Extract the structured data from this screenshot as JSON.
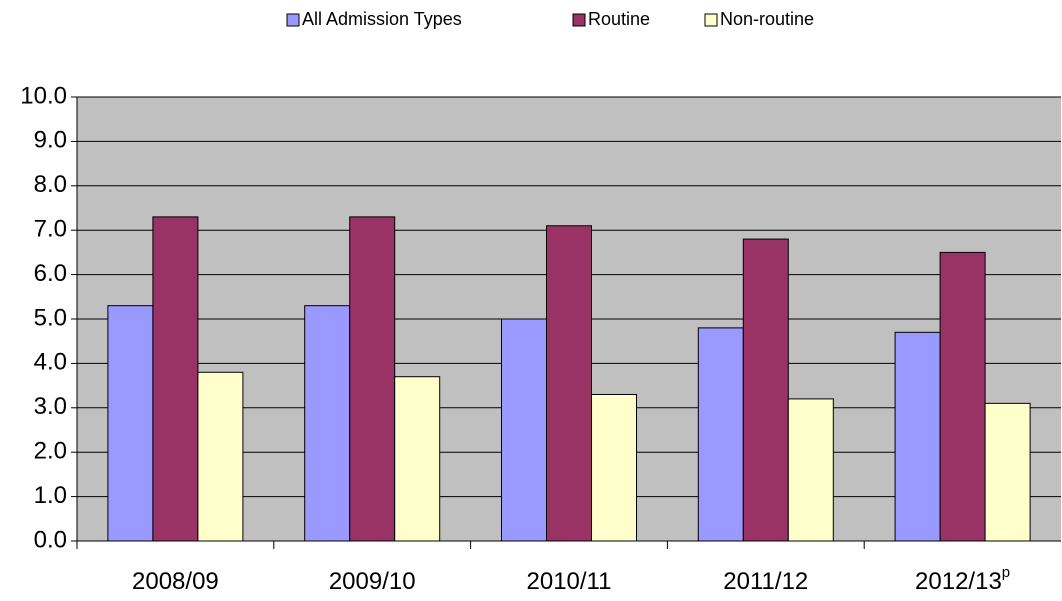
{
  "chart_data": {
    "type": "bar",
    "categories": [
      "2008/09",
      "2009/10",
      "2010/11",
      "2011/12",
      "2012/13"
    ],
    "category_notes": [
      null,
      null,
      null,
      null,
      "p"
    ],
    "series": [
      {
        "name": "All Admission Types",
        "color": "#9999ff",
        "values": [
          5.3,
          5.3,
          5.0,
          4.8,
          4.7
        ]
      },
      {
        "name": "Routine",
        "color": "#993366",
        "values": [
          7.3,
          7.3,
          7.1,
          6.8,
          6.5
        ]
      },
      {
        "name": "Non-routine",
        "color": "#ffffcc",
        "values": [
          3.8,
          3.7,
          3.3,
          3.2,
          3.1
        ]
      }
    ],
    "ylim": [
      0,
      10
    ],
    "yticks": [
      {
        "value": 0,
        "label": "0.0"
      },
      {
        "value": 1,
        "label": "1.0"
      },
      {
        "value": 2,
        "label": "2.0"
      },
      {
        "value": 3,
        "label": "3.0"
      },
      {
        "value": 4,
        "label": "4.0"
      },
      {
        "value": 5,
        "label": "5.0"
      },
      {
        "value": 6,
        "label": "6.0"
      },
      {
        "value": 7,
        "label": "7.0"
      },
      {
        "value": 8,
        "label": "8.0"
      },
      {
        "value": 9,
        "label": "9.0"
      },
      {
        "value": 10,
        "label": "10.0"
      }
    ],
    "grid": true,
    "plot_background": "#c0c0c0",
    "legend": "top"
  }
}
